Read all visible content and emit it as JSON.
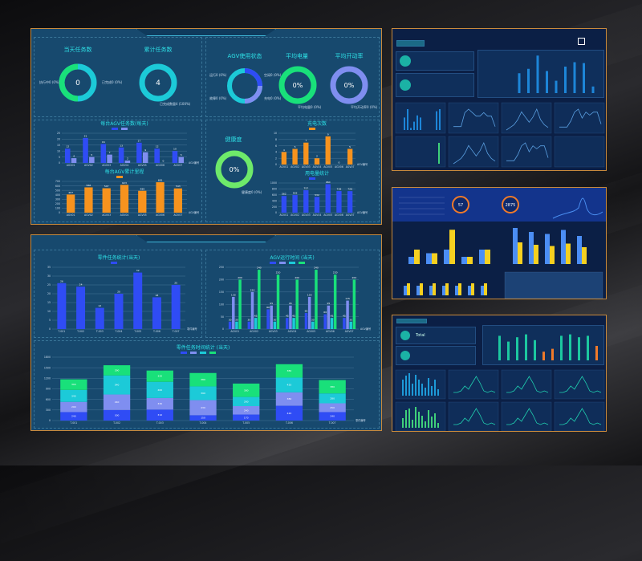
{
  "colors": {
    "blue": "#2f4cf5",
    "lavender": "#7f8ef0",
    "cyan": "#1ccad8",
    "green": "#19e07a",
    "orange": "#f7931e",
    "lime": "#6ee96a",
    "yellow": "#f5d020",
    "frame": "#c98a3c"
  },
  "panel_a": {
    "today_tasks": {
      "title": "当天任务数",
      "value": "0",
      "label_left": "执行中0 (0%)",
      "label_right": "已完成0 (0%)"
    },
    "total_tasks": {
      "title": "累计任务数",
      "value": "4",
      "label": "已完成数量4 (100%)"
    },
    "agv_status": {
      "title": "AGV使用状态",
      "labels": [
        "空闲0 (0%)",
        "充电0 (0%)",
        "故障0 (0%)",
        "运行0 (0%)"
      ]
    },
    "avg_battery": {
      "title": "平均电量",
      "value": "0%",
      "label": "平均电量0 (0%)"
    },
    "avg_utilization": {
      "title": "平均开动率",
      "value": "0%",
      "label": "平均开动率0 (0%)"
    },
    "health": {
      "title": "健康度",
      "value": "0%",
      "label": "健康度0 (0%)"
    }
  },
  "chart_data": [
    {
      "id": "c1",
      "type": "bar",
      "title": "每台AGV任务数(每天)",
      "categories": [
        "AGV01",
        "AGV02",
        "AGV03",
        "AGV04",
        "AGV05",
        "AGV06",
        "AGV07"
      ],
      "xlabel": "AGV编号",
      "ylim": [
        0,
        25
      ],
      "ticks": [
        0,
        5,
        10,
        15,
        20,
        25
      ],
      "series": [
        {
          "values": [
            12,
            21,
            16,
            13,
            17,
            12,
            10
          ],
          "color": "#2f4cf5"
        },
        {
          "values": [
            4,
            5,
            7,
            2,
            9,
            0,
            5
          ],
          "color": "#7f8ef0"
        }
      ]
    },
    {
      "id": "c2",
      "type": "bar",
      "title": "每台AGV累计里程",
      "categories": [
        "AGV01",
        "AGV02",
        "AGV03",
        "AGV04",
        "AGV05",
        "AGV06",
        "AGV07"
      ],
      "xlabel": "AGV编号",
      "ylim": [
        0,
        700
      ],
      "ticks": [
        0,
        100,
        200,
        300,
        400,
        500,
        600,
        700
      ],
      "series": [
        {
          "values": [
            407,
            566,
            547,
            623,
            489,
            681,
            543
          ],
          "color": "#f7931e"
        }
      ]
    },
    {
      "id": "c3",
      "type": "bar",
      "title": "充电次数",
      "categories": [
        "AGV01",
        "AGV02",
        "AGV03",
        "AGV04",
        "AGV05",
        "AGV06",
        "AGV07"
      ],
      "xlabel": "AGV编号",
      "ylim": [
        0,
        10
      ],
      "ticks": [
        0,
        2,
        4,
        6,
        8,
        10
      ],
      "series": [
        {
          "values": [
            4,
            5,
            7,
            2,
            9,
            0,
            5
          ],
          "color": "#f7931e"
        }
      ]
    },
    {
      "id": "c4",
      "type": "bar",
      "title": "用电量统计",
      "categories": [
        "AGV01",
        "AGV02",
        "AGV03",
        "AGV04",
        "AGV05",
        "AGV06",
        "AGV07"
      ],
      "xlabel": "AGV编号",
      "ylim": [
        0,
        1000
      ],
      "ticks": [
        0,
        200,
        400,
        600,
        800,
        1000
      ],
      "series": [
        {
          "values": [
            562,
            593,
            757,
            532,
            960,
            728,
            726
          ],
          "color": "#2f4cf5"
        }
      ]
    },
    {
      "id": "c5",
      "type": "bar",
      "title": "零件任务统计(当天)",
      "categories": [
        "T-001",
        "T-002",
        "T-003",
        "T-004",
        "T-005",
        "T-006",
        "T-007"
      ],
      "xlabel": "零件编号",
      "ylim": [
        0,
        35
      ],
      "ticks": [
        0,
        5,
        10,
        15,
        20,
        25,
        30,
        35
      ],
      "series": [
        {
          "values": [
            26,
            24,
            12,
            20,
            32,
            18,
            25
          ],
          "color": "#2f4cf5"
        }
      ]
    },
    {
      "id": "c6",
      "type": "bar",
      "title": "AGV运行时间 (当天)",
      "categories": [
        "AGV01",
        "AGV02",
        "AGV03",
        "AGV04",
        "AGV05",
        "AGV06",
        "AGV07"
      ],
      "xlabel": "AGV编号",
      "ylim": [
        0,
        250
      ],
      "ticks": [
        0,
        50,
        100,
        150,
        200,
        250
      ],
      "series": [
        {
          "values": [
            30,
            30,
            80,
            45,
            65,
            60,
            45
          ],
          "color": "#2f4cf5"
        },
        {
          "values": [
            130,
            150,
            95,
            95,
            130,
            95,
            115
          ],
          "color": "#7f8ef0"
        },
        {
          "values": [
            30,
            45,
            30,
            45,
            30,
            45,
            30
          ],
          "color": "#1ccad8"
        },
        {
          "values": [
            200,
            240,
            220,
            200,
            240,
            220,
            200
          ],
          "color": "#19e07a"
        }
      ]
    },
    {
      "id": "c7",
      "type": "stacked",
      "title": "零件任务时间统计 (当天)",
      "categories": [
        "T-001",
        "T-002",
        "T-003",
        "T-004",
        "T-005",
        "T-006",
        "T-007"
      ],
      "xlabel": "零件编号",
      "ylim": [
        0,
        1800
      ],
      "ticks": [
        0,
        300,
        600,
        900,
        1200,
        1500,
        1800
      ],
      "series": [
        {
          "values": [
            240,
            300,
            310,
            150,
            170,
            420,
            240
          ],
          "color": "#2f4cf5"
        },
        {
          "values": [
            290,
            440,
            330,
            430,
            240,
            380,
            250
          ],
          "color": "#7f8ef0"
        },
        {
          "values": [
            340,
            540,
            460,
            390,
            260,
            420,
            280
          ],
          "color": "#1ccad8"
        },
        {
          "values": [
            300,
            290,
            320,
            380,
            380,
            380,
            380
          ],
          "color": "#19e07a"
        }
      ]
    }
  ],
  "right_panels": {
    "p1": {
      "bars": [
        0,
        0,
        0,
        45,
        55,
        85,
        50,
        28,
        60,
        70,
        68,
        15
      ],
      "lines": [
        [
          1,
          1,
          1,
          5,
          6,
          5,
          4,
          4,
          5,
          4,
          4,
          1
        ],
        [
          0,
          1,
          2,
          4,
          7,
          5,
          3,
          5,
          8,
          4,
          2,
          1
        ],
        [
          1,
          1,
          1,
          3,
          6,
          7,
          4,
          6,
          5,
          6,
          6,
          2
        ]
      ]
    },
    "p2": {
      "values": [
        "57",
        "2875"
      ],
      "bars": [
        [
          20,
          30,
          40,
          20,
          40
        ],
        [
          40,
          30,
          95,
          20,
          40
        ]
      ]
    },
    "p3": {
      "header": "Total",
      "bars": [
        85,
        65,
        80,
        90,
        70,
        30,
        40,
        85,
        90,
        80,
        85,
        50
      ]
    }
  }
}
